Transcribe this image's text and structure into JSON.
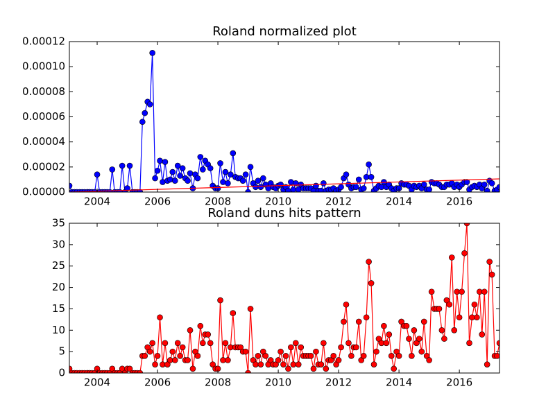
{
  "chart_data": [
    {
      "type": "line",
      "title": "Roland normalized plot",
      "x": [
        2003.08,
        2003.17,
        2003.25,
        2003.33,
        2003.42,
        2003.5,
        2003.58,
        2003.67,
        2003.75,
        2003.83,
        2003.92,
        2004,
        2004.08,
        2004.17,
        2004.25,
        2004.33,
        2004.42,
        2004.5,
        2004.58,
        2004.67,
        2004.75,
        2004.83,
        2004.92,
        2005,
        2005.08,
        2005.17,
        2005.25,
        2005.33,
        2005.42,
        2005.5,
        2005.58,
        2005.67,
        2005.75,
        2005.83,
        2005.92,
        2006,
        2006.08,
        2006.17,
        2006.25,
        2006.33,
        2006.42,
        2006.5,
        2006.58,
        2006.67,
        2006.75,
        2006.83,
        2006.92,
        2007,
        2007.08,
        2007.17,
        2007.25,
        2007.33,
        2007.42,
        2007.5,
        2007.58,
        2007.67,
        2007.75,
        2007.83,
        2007.92,
        2008,
        2008.08,
        2008.17,
        2008.25,
        2008.33,
        2008.42,
        2008.5,
        2008.58,
        2008.67,
        2008.75,
        2008.83,
        2008.92,
        2009,
        2009.08,
        2009.17,
        2009.25,
        2009.33,
        2009.42,
        2009.5,
        2009.58,
        2009.67,
        2009.75,
        2009.83,
        2009.92,
        2010,
        2010.08,
        2010.17,
        2010.25,
        2010.33,
        2010.42,
        2010.5,
        2010.58,
        2010.67,
        2010.75,
        2010.83,
        2010.92,
        2011,
        2011.08,
        2011.17,
        2011.25,
        2011.33,
        2011.42,
        2011.5,
        2011.58,
        2011.67,
        2011.75,
        2011.83,
        2011.92,
        2012,
        2012.08,
        2012.17,
        2012.25,
        2012.33,
        2012.42,
        2012.5,
        2012.58,
        2012.67,
        2012.75,
        2012.83,
        2012.92,
        2013,
        2013.08,
        2013.17,
        2013.25,
        2013.33,
        2013.42,
        2013.5,
        2013.58,
        2013.67,
        2013.75,
        2013.83,
        2013.92,
        2014,
        2014.08,
        2014.17,
        2014.25,
        2014.33,
        2014.42,
        2014.5,
        2014.58,
        2014.67,
        2014.75,
        2014.83,
        2014.92,
        2015,
        2015.08,
        2015.17,
        2015.25,
        2015.33,
        2015.42,
        2015.5,
        2015.58,
        2015.67,
        2015.75,
        2015.83,
        2015.92,
        2016,
        2016.08,
        2016.17,
        2016.25,
        2016.33,
        2016.42,
        2016.5,
        2016.58,
        2016.67,
        2016.75,
        2016.83,
        2016.92,
        2017,
        2017.08,
        2017.17,
        2017.25,
        2017.33
      ],
      "series": [
        {
          "color": "#0000ff",
          "values": [
            5e-06,
            0,
            0,
            0,
            0,
            0,
            0,
            0,
            0,
            0,
            0,
            1.4e-05,
            0,
            0,
            0,
            0,
            0,
            1.8e-05,
            0,
            0,
            0,
            2.1e-05,
            0,
            3e-06,
            2.1e-05,
            0,
            0,
            0,
            0,
            5.6e-05,
            6.3e-05,
            7.2e-05,
            7e-05,
            0.000111,
            1.1e-05,
            1.7e-05,
            2.5e-05,
            8e-06,
            2.4e-05,
            9e-06,
            1e-05,
            1.6e-05,
            9e-06,
            2.1e-05,
            1.3e-05,
            1.9e-05,
            1.1e-05,
            9e-06,
            1.5e-05,
            3e-06,
            1.4e-05,
            1.1e-05,
            2.8e-05,
            1.8e-05,
            2.5e-05,
            2.2e-05,
            1.9e-05,
            5e-06,
            3e-06,
            3e-06,
            2.3e-05,
            8e-06,
            1.6e-05,
            7e-06,
            1.4e-05,
            3.1e-05,
            1.2e-05,
            1.1e-05,
            1.1e-05,
            9e-06,
            1.4e-05,
            0,
            2e-05,
            7e-06,
            4e-06,
            9e-06,
            4e-06,
            1.1e-05,
            6e-06,
            3e-06,
            7e-06,
            4e-06,
            3e-06,
            5e-06,
            6e-06,
            2e-06,
            4e-06,
            1e-06,
            8e-06,
            2e-06,
            7e-06,
            2e-06,
            6e-06,
            3e-06,
            3e-06,
            3e-06,
            3e-06,
            1e-06,
            5e-06,
            1e-06,
            1e-06,
            7e-06,
            1e-06,
            2e-06,
            2e-06,
            3e-06,
            1e-06,
            2e-06,
            4e-06,
            1.1e-05,
            1.4e-05,
            6e-06,
            3e-06,
            4e-06,
            4e-06,
            1e-05,
            2e-06,
            3e-06,
            1.2e-05,
            2.2e-05,
            1.2e-05,
            1e-06,
            3e-06,
            5e-06,
            4e-06,
            8e-06,
            4e-06,
            6e-06,
            3e-06,
            1e-06,
            3e-06,
            3e-06,
            7e-06,
            6e-06,
            6e-06,
            5e-06,
            2e-06,
            5e-06,
            4e-06,
            5e-06,
            3e-06,
            6e-06,
            2e-06,
            2e-06,
            8e-06,
            7e-06,
            7e-06,
            6e-06,
            4e-06,
            4e-06,
            6e-06,
            6e-06,
            7e-06,
            4e-06,
            6e-06,
            4e-06,
            6e-06,
            8e-06,
            8e-06,
            2e-06,
            4e-06,
            5e-06,
            4e-06,
            6e-06,
            3e-06,
            6e-06,
            1e-06,
            9e-06,
            7e-06,
            1e-06,
            2e-06,
            4e-06
          ]
        }
      ],
      "trend": {
        "color": "#ff0000",
        "x": [
          2003.08,
          2017.33
        ],
        "values": [
          0,
          1.05e-05
        ]
      },
      "xlim": [
        2003.08,
        2017.33
      ],
      "xticks": [
        2004,
        2006,
        2008,
        2010,
        2012,
        2014,
        2016
      ],
      "ylim": [
        0,
        0.00012
      ],
      "yticks": [
        {
          "value": 0,
          "label": "0.00000"
        },
        2e-05,
        4e-05,
        6e-05,
        8e-05,
        {
          "value": 0.0001,
          "label": "0.00010"
        },
        0.00012
      ]
    },
    {
      "type": "line",
      "title": "Roland duns hits pattern",
      "x": [
        2003.08,
        2003.17,
        2003.25,
        2003.33,
        2003.42,
        2003.5,
        2003.58,
        2003.67,
        2003.75,
        2003.83,
        2003.92,
        2004,
        2004.08,
        2004.17,
        2004.25,
        2004.33,
        2004.42,
        2004.5,
        2004.58,
        2004.67,
        2004.75,
        2004.83,
        2004.92,
        2005,
        2005.08,
        2005.17,
        2005.25,
        2005.33,
        2005.42,
        2005.5,
        2005.58,
        2005.67,
        2005.75,
        2005.83,
        2005.92,
        2006,
        2006.08,
        2006.17,
        2006.25,
        2006.33,
        2006.42,
        2006.5,
        2006.58,
        2006.67,
        2006.75,
        2006.83,
        2006.92,
        2007,
        2007.08,
        2007.17,
        2007.25,
        2007.33,
        2007.42,
        2007.5,
        2007.58,
        2007.67,
        2007.75,
        2007.83,
        2007.92,
        2008,
        2008.08,
        2008.17,
        2008.25,
        2008.33,
        2008.42,
        2008.5,
        2008.58,
        2008.67,
        2008.75,
        2008.83,
        2008.92,
        2009,
        2009.08,
        2009.17,
        2009.25,
        2009.33,
        2009.42,
        2009.5,
        2009.58,
        2009.67,
        2009.75,
        2009.83,
        2009.92,
        2010,
        2010.08,
        2010.17,
        2010.25,
        2010.33,
        2010.42,
        2010.5,
        2010.58,
        2010.67,
        2010.75,
        2010.83,
        2010.92,
        2011,
        2011.08,
        2011.17,
        2011.25,
        2011.33,
        2011.42,
        2011.5,
        2011.58,
        2011.67,
        2011.75,
        2011.83,
        2011.92,
        2012,
        2012.08,
        2012.17,
        2012.25,
        2012.33,
        2012.42,
        2012.5,
        2012.58,
        2012.67,
        2012.75,
        2012.83,
        2012.92,
        2013,
        2013.08,
        2013.17,
        2013.25,
        2013.33,
        2013.42,
        2013.5,
        2013.58,
        2013.67,
        2013.75,
        2013.83,
        2013.92,
        2014,
        2014.08,
        2014.17,
        2014.25,
        2014.33,
        2014.42,
        2014.5,
        2014.58,
        2014.67,
        2014.75,
        2014.83,
        2014.92,
        2015,
        2015.08,
        2015.17,
        2015.25,
        2015.33,
        2015.42,
        2015.5,
        2015.58,
        2015.67,
        2015.75,
        2015.83,
        2015.92,
        2016,
        2016.08,
        2016.17,
        2016.25,
        2016.33,
        2016.42,
        2016.5,
        2016.58,
        2016.67,
        2016.75,
        2016.83,
        2016.92,
        2017,
        2017.08,
        2017.17,
        2017.25,
        2017.33
      ],
      "series": [
        {
          "color": "#ff0000",
          "values": [
            1,
            0,
            0,
            0,
            0,
            0,
            0,
            0,
            0,
            0,
            0,
            1,
            0,
            0,
            0,
            0,
            0,
            1,
            0,
            0,
            0,
            1,
            0,
            1,
            1,
            0,
            0,
            0,
            0,
            4,
            4,
            6,
            5,
            7,
            2,
            4,
            13,
            2,
            7,
            2,
            3,
            5,
            3,
            7,
            4,
            6,
            3,
            3,
            10,
            1,
            5,
            4,
            11,
            7,
            9,
            9,
            7,
            2,
            1,
            1,
            17,
            3,
            7,
            3,
            6,
            14,
            6,
            6,
            6,
            5,
            5,
            0,
            15,
            3,
            2,
            4,
            2,
            5,
            4,
            2,
            3,
            2,
            2,
            3,
            5,
            2,
            4,
            1,
            6,
            2,
            7,
            2,
            6,
            4,
            4,
            4,
            4,
            1,
            5,
            2,
            2,
            7,
            1,
            3,
            3,
            4,
            2,
            3,
            6,
            12,
            16,
            7,
            4,
            6,
            6,
            12,
            3,
            4,
            13,
            26,
            21,
            2,
            5,
            8,
            7,
            11,
            7,
            9,
            4,
            1,
            5,
            4,
            12,
            11,
            11,
            8,
            4,
            10,
            7,
            8,
            5,
            12,
            4,
            3,
            19,
            15,
            15,
            15,
            10,
            8,
            17,
            16,
            27,
            10,
            19,
            13,
            19,
            28,
            35,
            7,
            13,
            16,
            13,
            19,
            9,
            19,
            2,
            26,
            23,
            4,
            4,
            7
          ]
        }
      ],
      "xlim": [
        2003.08,
        2017.33
      ],
      "xticks": [
        2004,
        2006,
        2008,
        2010,
        2012,
        2014,
        2016
      ],
      "ylim": [
        0,
        35
      ],
      "yticks": [
        0,
        5,
        10,
        15,
        20,
        25,
        30,
        35
      ]
    }
  ]
}
